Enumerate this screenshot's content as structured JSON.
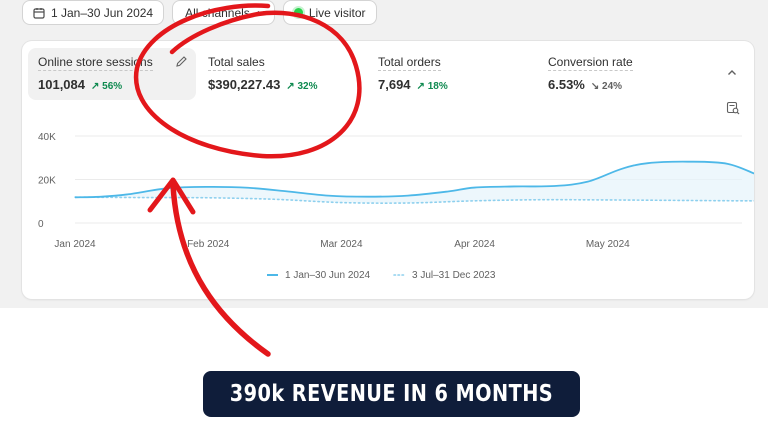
{
  "filters": {
    "date_range": "1 Jan–30 Jun 2024",
    "channels": "All channels",
    "live_visitor": "Live visitor"
  },
  "metrics": [
    {
      "label": "Online store sessions",
      "value": "101,084",
      "change": "56%",
      "direction": "up"
    },
    {
      "label": "Total sales",
      "value": "$390,227.43",
      "change": "32%",
      "direction": "up"
    },
    {
      "label": "Total orders",
      "value": "7,694",
      "change": "18%",
      "direction": "up"
    },
    {
      "label": "Conversion rate",
      "value": "6.53%",
      "change": "24%",
      "direction": "down"
    }
  ],
  "chart_data": {
    "type": "line",
    "x": [
      "Jan 2024",
      "Feb 2024",
      "Mar 2024",
      "Apr 2024",
      "May 2024"
    ],
    "yticks": [
      "0",
      "20K",
      "40K"
    ],
    "ylim": [
      0,
      40000
    ],
    "series": [
      {
        "name": "1 Jan–30 Jun 2024",
        "style": "solid",
        "color": "#4db8e8",
        "points": [
          [
            0,
            11800
          ],
          [
            0.2,
            12100
          ],
          [
            0.4,
            13200
          ],
          [
            0.7,
            16000
          ],
          [
            1.0,
            16600
          ],
          [
            1.3,
            16200
          ],
          [
            1.6,
            14500
          ],
          [
            1.9,
            12600
          ],
          [
            2.2,
            12100
          ],
          [
            2.5,
            12600
          ],
          [
            2.8,
            14500
          ],
          [
            3.0,
            16300
          ],
          [
            3.3,
            16800
          ],
          [
            3.6,
            17000
          ],
          [
            3.85,
            19000
          ],
          [
            4.1,
            24800
          ],
          [
            4.3,
            27500
          ],
          [
            4.6,
            28200
          ],
          [
            4.9,
            27200
          ],
          [
            5.15,
            21500
          ],
          [
            5.4,
            16200
          ],
          [
            5.7,
            15200
          ]
        ]
      },
      {
        "name": "3 Jul–31 Dec 2023",
        "style": "dotted",
        "color": "#8ed0ee",
        "points": [
          [
            0,
            11900
          ],
          [
            0.5,
            11700
          ],
          [
            1.0,
            11600
          ],
          [
            1.5,
            10900
          ],
          [
            2.0,
            9400
          ],
          [
            2.5,
            9200
          ],
          [
            3.0,
            10200
          ],
          [
            3.5,
            10700
          ],
          [
            4.0,
            10600
          ],
          [
            4.5,
            10400
          ],
          [
            5.0,
            10200
          ],
          [
            5.7,
            10000
          ]
        ]
      }
    ],
    "legend_position": "bottom-center"
  },
  "banner": {
    "text": "390k REVENUE IN 6 MONTHS"
  },
  "annotation_color": "#e3171b"
}
